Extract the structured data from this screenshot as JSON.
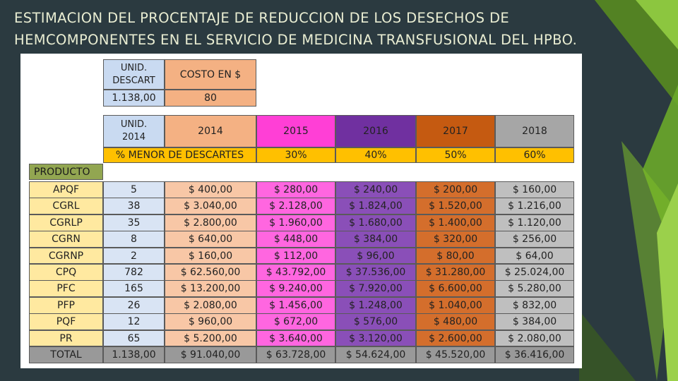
{
  "slide": {
    "title": "ESTIMACION DEL PROCENTAJE DE REDUCCION DE LOS DESECHOS DE HEMCOMPONENTES EN EL SERVICIO DE MEDICINA TRANSFUSIONAL DEL HPBO."
  },
  "summary": {
    "unid_header_line1": "UNID.",
    "unid_header_line2": "DESCART",
    "cost_header": "COSTO EN $",
    "unid_value": "1.138,00",
    "cost_value": "80"
  },
  "years": {
    "unid_line1": "UNID.",
    "unid_line2": "2014",
    "labels": [
      "2014",
      "2015",
      "2016",
      "2017",
      "2018"
    ],
    "reduction_label": "% MENOR DE DESCARTES",
    "reductions": [
      "30%",
      "40%",
      "50%",
      "60%"
    ]
  },
  "table": {
    "product_header": "PRODUCTO",
    "rows": [
      {
        "product": "APQF",
        "units": "5",
        "values": [
          "$ 400,00",
          "$ 280,00",
          "$ 240,00",
          "$ 200,00",
          "$ 160,00"
        ]
      },
      {
        "product": "CGRL",
        "units": "38",
        "values": [
          "$ 3.040,00",
          "$ 2.128,00",
          "$ 1.824,00",
          "$ 1.520,00",
          "$ 1.216,00"
        ]
      },
      {
        "product": "CGRLP",
        "units": "35",
        "values": [
          "$ 2.800,00",
          "$ 1.960,00",
          "$ 1.680,00",
          "$ 1.400,00",
          "$ 1.120,00"
        ]
      },
      {
        "product": "CGRN",
        "units": "8",
        "values": [
          "$ 640,00",
          "$ 448,00",
          "$ 384,00",
          "$ 320,00",
          "$ 256,00"
        ]
      },
      {
        "product": "CGRNP",
        "units": "2",
        "values": [
          "$ 160,00",
          "$ 112,00",
          "$ 96,00",
          "$ 80,00",
          "$ 64,00"
        ]
      },
      {
        "product": "CPQ",
        "units": "782",
        "values": [
          "$ 62.560,00",
          "$ 43.792,00",
          "$ 37.536,00",
          "$ 31.280,00",
          "$ 25.024,00"
        ]
      },
      {
        "product": "PFC",
        "units": "165",
        "values": [
          "$ 13.200,00",
          "$ 9.240,00",
          "$ 7.920,00",
          "$ 6.600,00",
          "$ 5.280,00"
        ]
      },
      {
        "product": "PFP",
        "units": "26",
        "values": [
          "$ 2.080,00",
          "$ 1.456,00",
          "$ 1.248,00",
          "$ 1.040,00",
          "$ 832,00"
        ]
      },
      {
        "product": "PQF",
        "units": "12",
        "values": [
          "$ 960,00",
          "$ 672,00",
          "$ 576,00",
          "$ 480,00",
          "$ 384,00"
        ]
      },
      {
        "product": "PR",
        "units": "65",
        "values": [
          "$ 5.200,00",
          "$ 3.640,00",
          "$ 3.120,00",
          "$ 2.600,00",
          "$ 2.080,00"
        ]
      }
    ],
    "total": {
      "product": "TOTAL",
      "units": "1.138,00",
      "values": [
        "$ 91.040,00",
        "$ 63.728,00",
        "$ 54.624,00",
        "$ 45.520,00",
        "$ 36.416,00"
      ]
    }
  },
  "colors": {
    "background": "#2b3a40",
    "accent_green": "#7dbb2a",
    "year_2014": "#f4b183",
    "year_2015": "#ff3fd6",
    "year_2016": "#7030a0",
    "year_2017": "#c55a11",
    "year_2018": "#a6a6a6",
    "reduction_row": "#ffc000",
    "product_header": "#92a651"
  }
}
